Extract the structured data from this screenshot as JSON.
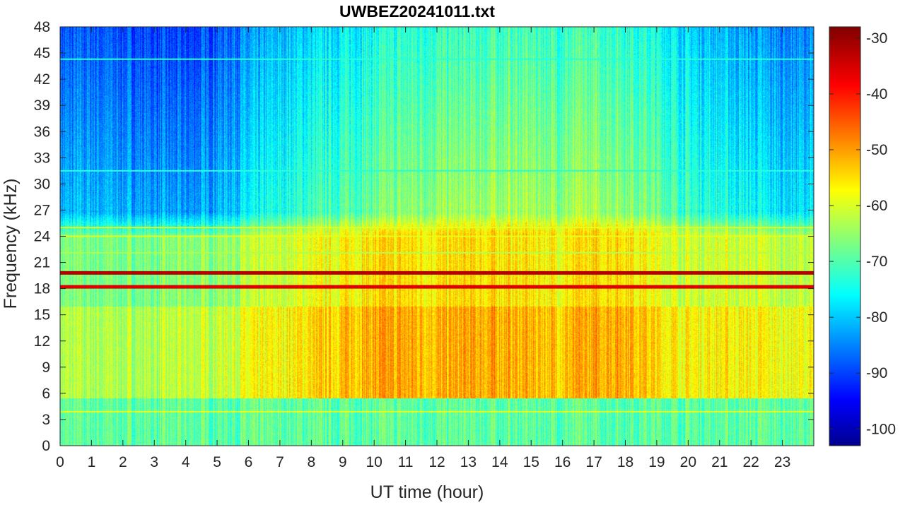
{
  "chart_data": {
    "type": "heatmap",
    "title": "UWBEZ20241011.txt",
    "xlabel": "UT time (hour)",
    "ylabel": "Frequency (kHz)",
    "xlim": [
      0,
      24
    ],
    "ylim": [
      0,
      48
    ],
    "x_ticks": [
      0,
      1,
      2,
      3,
      4,
      5,
      6,
      7,
      8,
      9,
      10,
      11,
      12,
      13,
      14,
      15,
      16,
      17,
      18,
      19,
      20,
      21,
      22,
      23
    ],
    "x_tick_labels": [
      "0",
      "1",
      "2",
      "3",
      "4",
      "5",
      "6",
      "7",
      "8",
      "9",
      "10",
      "11",
      "12",
      "13",
      "14",
      "15",
      "16",
      "17",
      "18",
      "19",
      "20",
      "21",
      "22",
      "23"
    ],
    "y_ticks": [
      0,
      3,
      6,
      9,
      12,
      15,
      18,
      21,
      24,
      27,
      30,
      33,
      36,
      39,
      42,
      45,
      48
    ],
    "y_tick_labels": [
      "0",
      "3",
      "6",
      "9",
      "12",
      "15",
      "18",
      "21",
      "24",
      "27",
      "30",
      "33",
      "36",
      "39",
      "42",
      "45",
      "48"
    ],
    "colorbar": {
      "colormap": "jet",
      "range": [
        -103,
        -28
      ],
      "ticks": [
        -30,
        -40,
        -50,
        -60,
        -70,
        -80,
        -90,
        -100
      ],
      "tick_labels": [
        "-30",
        "-40",
        "-50",
        "-60",
        "-70",
        "-80",
        "-90",
        "-100"
      ]
    },
    "narrowband_lines": [
      {
        "freq_khz": 19.8,
        "level": -32
      },
      {
        "freq_khz": 18.2,
        "level": -35
      },
      {
        "freq_khz": 24.0,
        "level": -58
      },
      {
        "freq_khz": 25.0,
        "level": -58
      },
      {
        "freq_khz": 22.1,
        "level": -62
      },
      {
        "freq_khz": 3.9,
        "level": -58
      },
      {
        "freq_khz": 44.3,
        "level": -72
      },
      {
        "freq_khz": 31.5,
        "level": -72
      }
    ],
    "hourly_band_profile": {
      "hours": [
        0,
        1,
        2,
        3,
        4,
        5,
        6,
        7,
        8,
        9,
        10,
        11,
        12,
        13,
        14,
        15,
        16,
        17,
        18,
        19,
        20,
        21,
        22,
        23
      ],
      "level_6_to_15_khz": [
        -62,
        -62,
        -62,
        -62,
        -61,
        -60,
        -58,
        -56,
        -54,
        -52,
        -50,
        -50,
        -51,
        -50,
        -50,
        -51,
        -52,
        -50,
        -49,
        -54,
        -56,
        -55,
        -56,
        -57
      ],
      "level_above_27_khz": [
        -88,
        -87,
        -88,
        -89,
        -90,
        -87,
        -84,
        -80,
        -78,
        -76,
        -74,
        -72,
        -71,
        -71,
        -70,
        -70,
        -71,
        -70,
        -71,
        -74,
        -78,
        -80,
        -82,
        -84
      ]
    }
  }
}
